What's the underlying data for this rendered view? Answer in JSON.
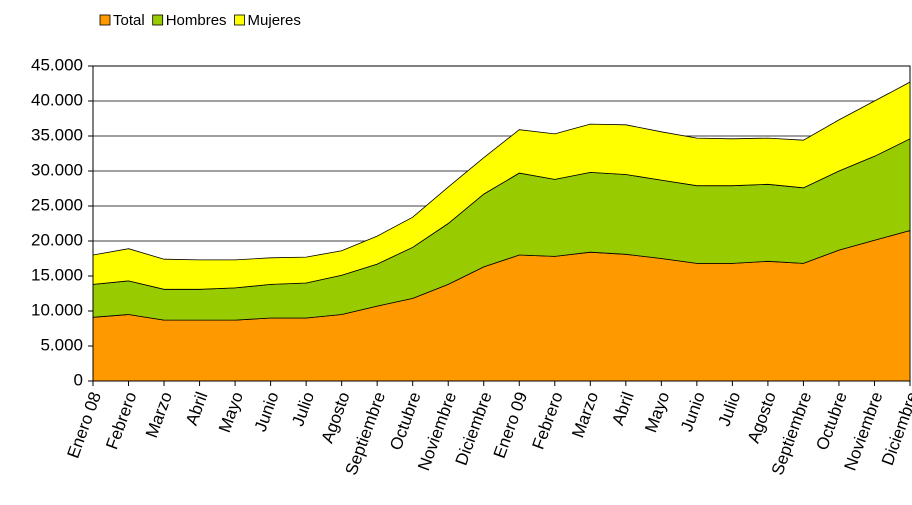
{
  "chart_data": {
    "type": "stacked_area",
    "categories": [
      "Enero 08",
      "Febrero",
      "Marzo",
      "Abril",
      "Mayo",
      "Junio",
      "Julio",
      "Agosto",
      "Septiembre",
      "Octubre",
      "Noviembre",
      "Diciembre",
      "Enero 09",
      "Febrero",
      "Marzo",
      "Abril",
      "Mayo",
      "Junio",
      "Julio",
      "Agosto",
      "Septiembre",
      "Octubre",
      "Noviembre",
      "Diciembre"
    ],
    "series": [
      {
        "name": "Total",
        "color": "#ff9900",
        "values": [
          9100,
          9500,
          8700,
          8700,
          8700,
          9000,
          9000,
          9500,
          10700,
          11800,
          13800,
          16300,
          18000,
          17800,
          18400,
          18100,
          17500,
          16800,
          16800,
          17100,
          16800,
          18700,
          20100,
          21500
        ]
      },
      {
        "name": "Hombres",
        "color": "#99cc00",
        "values": [
          4700,
          4800,
          4400,
          4400,
          4600,
          4800,
          5000,
          5600,
          6000,
          7300,
          8700,
          10400,
          11700,
          11000,
          11400,
          11400,
          11200,
          11100,
          11100,
          11000,
          10800,
          11300,
          12000,
          13100
        ]
      },
      {
        "name": "Mujeres",
        "color": "#ffff00",
        "values": [
          4200,
          4600,
          4300,
          4200,
          4000,
          3800,
          3700,
          3500,
          4000,
          4300,
          5200,
          5200,
          6200,
          6500,
          6900,
          7100,
          6900,
          6800,
          6700,
          6600,
          6800,
          7300,
          7900,
          8100
        ]
      }
    ],
    "ylim": [
      0,
      45000
    ],
    "yticks": [
      0,
      {
        "value": 5000,
        "label": "5.000"
      },
      {
        "value": 10000,
        "label": "10.000"
      },
      {
        "value": 15000,
        "label": "15.000"
      },
      {
        "value": 20000,
        "label": "20.000"
      },
      {
        "value": 25000,
        "label": "25.000"
      },
      {
        "value": 30000,
        "label": "30.000"
      },
      {
        "value": 35000,
        "label": "35.000"
      },
      {
        "value": 40000,
        "label": "40.000"
      },
      {
        "value": 45000,
        "label": "45.000"
      }
    ],
    "grid": true,
    "legend": "top-left"
  }
}
